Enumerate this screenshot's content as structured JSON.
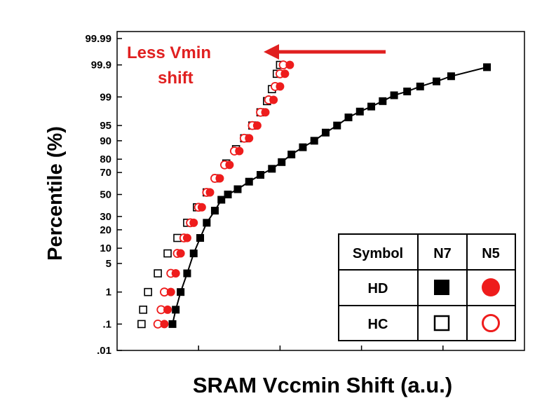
{
  "chart_data": {
    "type": "scatter",
    "title": "",
    "xlabel": "SRAM Vccmin Shift (a.u.)",
    "ylabel": "Percentile (%)",
    "y_scale": "normal-probability",
    "y_ticks": [
      {
        "value": 0.01,
        "label": ".01"
      },
      {
        "value": 0.1,
        "label": ".1"
      },
      {
        "value": 1,
        "label": "1"
      },
      {
        "value": 5,
        "label": "5"
      },
      {
        "value": 10,
        "label": "10"
      },
      {
        "value": 20,
        "label": "20"
      },
      {
        "value": 30,
        "label": "30"
      },
      {
        "value": 50,
        "label": "50"
      },
      {
        "value": 70,
        "label": "70"
      },
      {
        "value": 80,
        "label": "80"
      },
      {
        "value": 90,
        "label": "90"
      },
      {
        "value": 95,
        "label": "95"
      },
      {
        "value": 99,
        "label": "99"
      },
      {
        "value": 99.9,
        "label": "99.9"
      },
      {
        "value": 99.99,
        "label": "99.99"
      }
    ],
    "ylim": [
      0.01,
      99.99
    ],
    "xlim": [
      0,
      5
    ],
    "x_tick_labels": "none",
    "grid": false,
    "annotation": {
      "line1": "Less Vmin",
      "line2": "shift",
      "color": "#e02020"
    },
    "legend": {
      "placement": "bottom-right",
      "header": [
        "Symbol",
        "N7",
        "N5"
      ],
      "rows": [
        {
          "label": "HD",
          "n7": "filled-square",
          "n5": "filled-circle"
        },
        {
          "label": "HC",
          "n7": "open-square",
          "n5": "open-circle"
        }
      ]
    },
    "series": [
      {
        "key": "n7_hd",
        "marker": "filled-square",
        "color": "#000000",
        "connect": true,
        "points": [
          [
            0.68,
            0.1
          ],
          [
            0.72,
            0.3
          ],
          [
            0.78,
            1
          ],
          [
            0.86,
            3
          ],
          [
            0.94,
            8
          ],
          [
            1.02,
            15
          ],
          [
            1.1,
            25
          ],
          [
            1.2,
            35
          ],
          [
            1.28,
            45
          ],
          [
            1.36,
            50
          ],
          [
            1.48,
            55
          ],
          [
            1.62,
            62
          ],
          [
            1.76,
            68
          ],
          [
            1.9,
            73
          ],
          [
            2.02,
            78
          ],
          [
            2.14,
            83
          ],
          [
            2.28,
            87
          ],
          [
            2.42,
            90
          ],
          [
            2.56,
            93
          ],
          [
            2.7,
            95
          ],
          [
            2.84,
            96.7
          ],
          [
            2.98,
            97.6
          ],
          [
            3.12,
            98.2
          ],
          [
            3.26,
            98.7
          ],
          [
            3.4,
            99.1
          ],
          [
            3.56,
            99.3
          ],
          [
            3.72,
            99.5
          ],
          [
            3.92,
            99.65
          ],
          [
            4.1,
            99.76
          ],
          [
            4.54,
            99.88
          ]
        ]
      },
      {
        "key": "n7_hc",
        "marker": "open-square",
        "color": "#000000",
        "connect": false,
        "points": [
          [
            0.3,
            0.1
          ],
          [
            0.32,
            0.3
          ],
          [
            0.38,
            1
          ],
          [
            0.5,
            3
          ],
          [
            0.62,
            8
          ],
          [
            0.74,
            15
          ],
          [
            0.86,
            25
          ],
          [
            0.98,
            38
          ],
          [
            1.1,
            52
          ],
          [
            1.22,
            65
          ],
          [
            1.34,
            77
          ],
          [
            1.46,
            86
          ],
          [
            1.56,
            91
          ],
          [
            1.66,
            95
          ],
          [
            1.76,
            97.5
          ],
          [
            1.84,
            98.7
          ],
          [
            1.9,
            99.4
          ],
          [
            1.96,
            99.8
          ],
          [
            2.0,
            99.9
          ]
        ]
      },
      {
        "key": "n5_hd",
        "marker": "filled-circle",
        "color": "#ee1c1c",
        "connect": false,
        "points": [
          [
            0.58,
            0.1
          ],
          [
            0.62,
            0.3
          ],
          [
            0.66,
            1
          ],
          [
            0.72,
            3
          ],
          [
            0.78,
            8
          ],
          [
            0.86,
            15
          ],
          [
            0.94,
            25
          ],
          [
            1.04,
            38
          ],
          [
            1.14,
            52
          ],
          [
            1.26,
            65
          ],
          [
            1.38,
            76
          ],
          [
            1.5,
            85
          ],
          [
            1.62,
            91
          ],
          [
            1.72,
            95
          ],
          [
            1.82,
            97.5
          ],
          [
            1.92,
            98.8
          ],
          [
            2.0,
            99.5
          ],
          [
            2.06,
            99.8
          ],
          [
            2.12,
            99.9
          ]
        ]
      },
      {
        "key": "n5_hc",
        "marker": "open-circle",
        "color": "#ee1c1c",
        "connect": false,
        "points": [
          [
            0.5,
            0.1
          ],
          [
            0.54,
            0.3
          ],
          [
            0.58,
            1
          ],
          [
            0.66,
            3
          ],
          [
            0.74,
            8
          ],
          [
            0.82,
            15
          ],
          [
            0.9,
            25
          ],
          [
            1.0,
            38
          ],
          [
            1.1,
            52
          ],
          [
            1.2,
            65
          ],
          [
            1.32,
            76
          ],
          [
            1.44,
            85
          ],
          [
            1.56,
            91
          ],
          [
            1.66,
            95
          ],
          [
            1.76,
            97.5
          ],
          [
            1.86,
            98.8
          ],
          [
            1.94,
            99.5
          ],
          [
            2.0,
            99.8
          ],
          [
            2.04,
            99.9
          ]
        ]
      }
    ]
  },
  "colors": {
    "accent_red": "#e02020",
    "marker_red": "#ee1c1c",
    "black": "#000000"
  }
}
